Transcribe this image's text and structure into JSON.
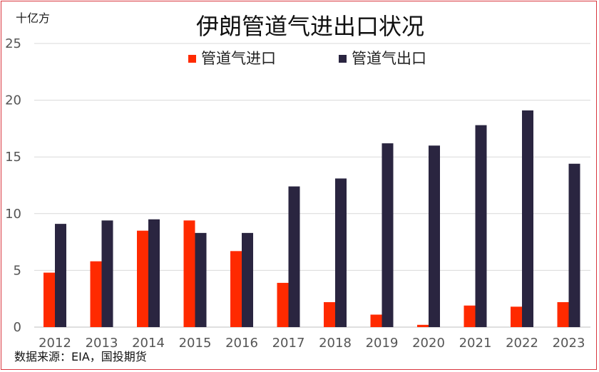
{
  "chart_data": {
    "type": "bar",
    "title": "伊朗管道气进出口状况",
    "unit_label": "十亿方",
    "source": "数据来源：EIA，国投期货",
    "categories": [
      "2012",
      "2013",
      "2014",
      "2015",
      "2016",
      "2017",
      "2018",
      "2019",
      "2020",
      "2021",
      "2022",
      "2023"
    ],
    "series": [
      {
        "name": "管道气进口",
        "color": "#ff2a00",
        "values": [
          4.8,
          5.8,
          8.5,
          9.4,
          6.7,
          3.9,
          2.2,
          1.1,
          0.2,
          1.9,
          1.8,
          2.2
        ]
      },
      {
        "name": "管道气出口",
        "color": "#2a2540",
        "values": [
          9.1,
          9.4,
          9.5,
          8.3,
          8.3,
          12.4,
          13.1,
          16.2,
          16.0,
          17.8,
          19.1,
          14.4
        ]
      }
    ],
    "ylim": [
      0,
      25
    ],
    "yticks": [
      0,
      5,
      10,
      15,
      20,
      25
    ],
    "grid": true,
    "legend_position": "top"
  }
}
